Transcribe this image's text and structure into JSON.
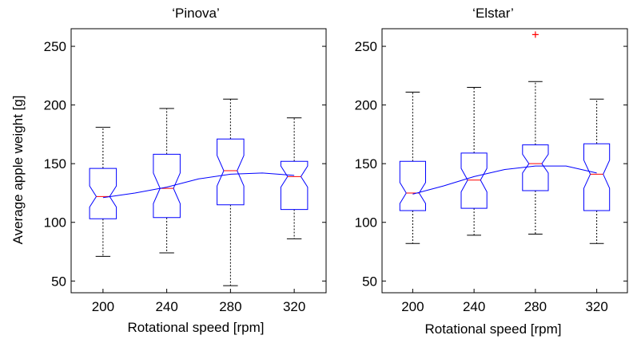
{
  "figure": {
    "ylabel": "Average apple weight [g]"
  },
  "chart_data": [
    {
      "type": "boxplot",
      "title": "‘Pinova’",
      "xlabel": "Rotational speed [rpm]",
      "ylabel": "Average apple weight [g]",
      "categories": [
        "200",
        "240",
        "280",
        "320"
      ],
      "ylim": [
        40,
        265
      ],
      "yticks": [
        50,
        100,
        150,
        200,
        250
      ],
      "grid": false,
      "notched": true,
      "boxes": [
        {
          "category": "200",
          "whisker_low": 71,
          "q1": 103,
          "median": 122,
          "q3": 146,
          "whisker_high": 181,
          "notch_low": 113,
          "notch_high": 131,
          "outliers": []
        },
        {
          "category": "240",
          "whisker_low": 74,
          "q1": 104,
          "median": 129,
          "q3": 158,
          "whisker_high": 197,
          "notch_low": 116,
          "notch_high": 142,
          "outliers": []
        },
        {
          "category": "280",
          "whisker_low": 46,
          "q1": 115,
          "median": 144,
          "q3": 171,
          "whisker_high": 205,
          "notch_low": 131,
          "notch_high": 157,
          "outliers": []
        },
        {
          "category": "320",
          "whisker_low": 86,
          "q1": 111,
          "median": 139,
          "q3": 152,
          "whisker_high": 189,
          "notch_low": 130,
          "notch_high": 148,
          "outliers": []
        }
      ],
      "trend": [
        {
          "x": 1,
          "y": 121
        },
        {
          "x": 1.5,
          "y": 125
        },
        {
          "x": 2,
          "y": 130
        },
        {
          "x": 2.5,
          "y": 137
        },
        {
          "x": 3,
          "y": 141
        },
        {
          "x": 3.5,
          "y": 142
        },
        {
          "x": 4,
          "y": 140
        }
      ],
      "colors": {
        "box": "#0000ff",
        "median": "#ff0000",
        "whisker": "#000000",
        "trend": "#0000ff"
      }
    },
    {
      "type": "boxplot",
      "title": "‘Elstar’",
      "xlabel": "Rotational speed [rpm]",
      "ylabel": "",
      "categories": [
        "200",
        "240",
        "280",
        "320"
      ],
      "ylim": [
        40,
        265
      ],
      "yticks": [
        50,
        100,
        150,
        200,
        250
      ],
      "grid": false,
      "notched": true,
      "boxes": [
        {
          "category": "200",
          "whisker_low": 82,
          "q1": 110,
          "median": 125,
          "q3": 152,
          "whisker_high": 211,
          "notch_low": 116,
          "notch_high": 134,
          "outliers": []
        },
        {
          "category": "240",
          "whisker_low": 89,
          "q1": 112,
          "median": 136,
          "q3": 159,
          "whisker_high": 215,
          "notch_low": 126,
          "notch_high": 146,
          "outliers": []
        },
        {
          "category": "280",
          "whisker_low": 90,
          "q1": 127,
          "median": 150,
          "q3": 166,
          "whisker_high": 220,
          "notch_low": 142,
          "notch_high": 158,
          "outliers": [
            260
          ]
        },
        {
          "category": "320",
          "whisker_low": 82,
          "q1": 110,
          "median": 141,
          "q3": 167,
          "whisker_high": 205,
          "notch_low": 129,
          "notch_high": 153,
          "outliers": []
        }
      ],
      "trend": [
        {
          "x": 1,
          "y": 124
        },
        {
          "x": 1.5,
          "y": 131
        },
        {
          "x": 2,
          "y": 139
        },
        {
          "x": 2.5,
          "y": 145
        },
        {
          "x": 3,
          "y": 148
        },
        {
          "x": 3.5,
          "y": 148
        },
        {
          "x": 4,
          "y": 142
        }
      ],
      "colors": {
        "box": "#0000ff",
        "median": "#ff0000",
        "whisker": "#000000",
        "outlier": "#ff0000",
        "trend": "#0000ff"
      }
    }
  ]
}
